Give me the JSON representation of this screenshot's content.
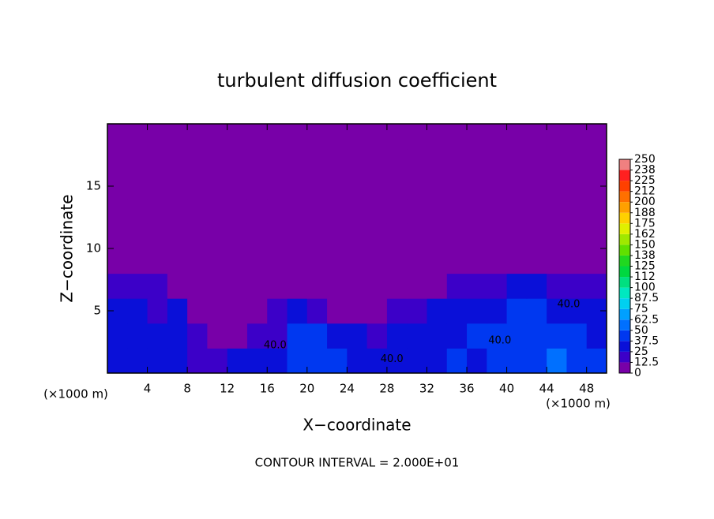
{
  "chart_data": {
    "type": "contour",
    "title": "turbulent diffusion coefficient",
    "x_label": "X−coordinate",
    "y_label": "Z−coordinate",
    "x_unit_left": "(×1000 m)",
    "x_unit_right": "(×1000 m)",
    "footnote": "CONTOUR INTERVAL = 2.000E+01",
    "xlim": [
      0,
      50
    ],
    "ylim": [
      0,
      20
    ],
    "xticks": [
      4,
      8,
      12,
      16,
      20,
      24,
      28,
      32,
      36,
      40,
      44,
      48
    ],
    "yticks": [
      5,
      10,
      15
    ],
    "z": [
      [
        30,
        35,
        30,
        25,
        20,
        20,
        25,
        30,
        35,
        40,
        45,
        40,
        35,
        30,
        35,
        30,
        35,
        40,
        35,
        45,
        40,
        45,
        50,
        45,
        40
      ],
      [
        35,
        30,
        35,
        25,
        15,
        10,
        12,
        15,
        20,
        40,
        40,
        30,
        25,
        20,
        30,
        35,
        25,
        35,
        40,
        45,
        40,
        45,
        45,
        40,
        35
      ],
      [
        30,
        35,
        20,
        25,
        10,
        5,
        5,
        8,
        15,
        30,
        15,
        8,
        10,
        12,
        15,
        20,
        25,
        30,
        30,
        35,
        40,
        40,
        35,
        35,
        30
      ],
      [
        20,
        15,
        15,
        10,
        5,
        3,
        2,
        3,
        5,
        5,
        5,
        3,
        3,
        3,
        2,
        3,
        5,
        15,
        20,
        20,
        25,
        25,
        20,
        20,
        15
      ],
      [
        0,
        0,
        0,
        0,
        0,
        0,
        0,
        0,
        0,
        0,
        0,
        0,
        0,
        0,
        0,
        0,
        0,
        0,
        0,
        0,
        0,
        0,
        0,
        0,
        0
      ],
      [
        0,
        0,
        0,
        0,
        0,
        0,
        0,
        0,
        0,
        0,
        0,
        0,
        0,
        0,
        0,
        0,
        0,
        0,
        0,
        0,
        0,
        0,
        0,
        0,
        0
      ],
      [
        0,
        0,
        0,
        0,
        0,
        0,
        0,
        0,
        0,
        0,
        0,
        0,
        0,
        0,
        0,
        0,
        0,
        0,
        0,
        0,
        0,
        0,
        0,
        0,
        0
      ],
      [
        0,
        0,
        0,
        0,
        0,
        0,
        0,
        0,
        0,
        0,
        0,
        0,
        0,
        0,
        0,
        0,
        0,
        0,
        0,
        0,
        0,
        0,
        0,
        0,
        0
      ],
      [
        0,
        0,
        0,
        0,
        0,
        0,
        0,
        0,
        0,
        0,
        0,
        0,
        0,
        0,
        0,
        0,
        0,
        0,
        0,
        0,
        0,
        0,
        0,
        0,
        0
      ],
      [
        0,
        0,
        0,
        0,
        0,
        0,
        0,
        0,
        0,
        0,
        0,
        0,
        0,
        0,
        0,
        0,
        0,
        0,
        0,
        0,
        0,
        0,
        0,
        0,
        0
      ]
    ],
    "levels": [
      0,
      12.5,
      25,
      37.5,
      50,
      62.5,
      75,
      87.5,
      100,
      {
        "value": 112.5,
        "label": "112"
      },
      125,
      {
        "value": 137.5,
        "label": "138"
      },
      150,
      {
        "value": 162.5,
        "label": "162"
      },
      175,
      {
        "value": 187.5,
        "label": "188"
      },
      200,
      {
        "value": 212.5,
        "label": "212"
      },
      225,
      {
        "value": 237.5,
        "label": "238"
      },
      250
    ],
    "colors": [
      "#7800a8",
      "#3c00c8",
      "#0a10d8",
      "#0038f0",
      "#0070ff",
      "#00a0ff",
      "#00d0f0",
      "#00e8c0",
      "#00e080",
      "#00d840",
      "#20d820",
      "#60e000",
      "#a0e800",
      "#e0f000",
      "#ffd000",
      "#ffa000",
      "#ff7000",
      "#ff4000",
      "#ff2020",
      "#f08080"
    ],
    "annotations": [
      {
        "text": "40.0",
        "x": 16.8,
        "y": 2.2
      },
      {
        "text": "40.0",
        "x": 28.5,
        "y": 1.1
      },
      {
        "text": "40.0",
        "x": 39.3,
        "y": 2.6
      },
      {
        "text": "40.0",
        "x": 46.2,
        "y": 5.5
      }
    ]
  }
}
